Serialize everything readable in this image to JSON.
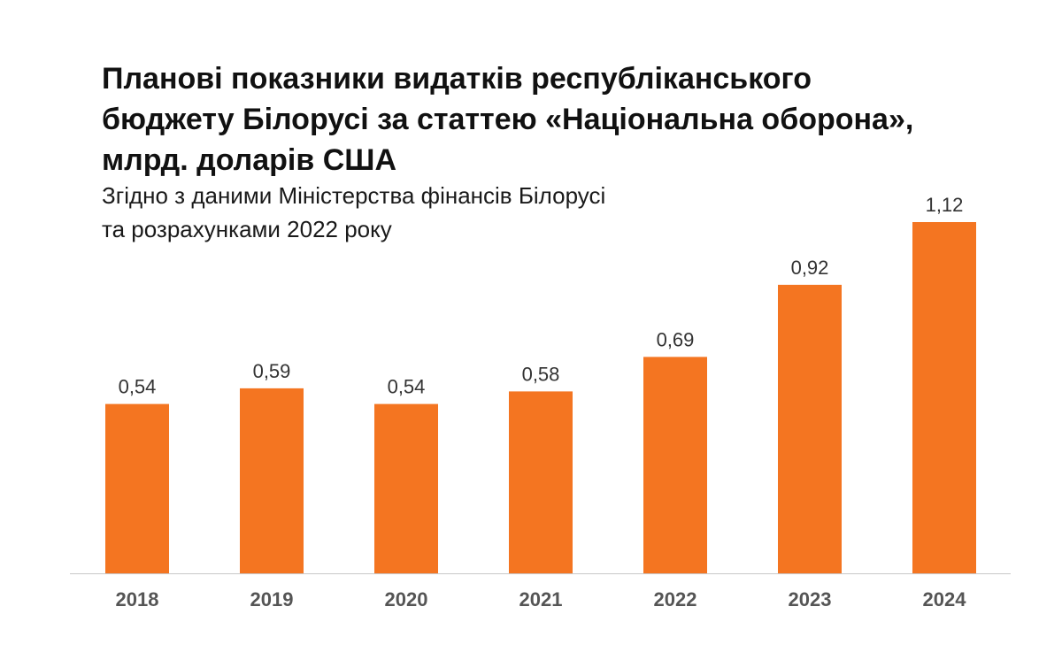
{
  "title": "Планові показники видатків республіканського\nбюджету Білорусі за статтею «Національна оборона»,\nмлрд. доларів США",
  "subtitle": "Згідно з даними Міністерства фінансів Білорусі\nта розрахунками 2022 року",
  "colors": {
    "bar": "#F47521",
    "axis": "#c8c8c8"
  },
  "chart_data": {
    "type": "bar",
    "title": "Планові показники видатків республіканського бюджету Білорусі за статтею «Національна оборона», млрд. доларів США",
    "subtitle": "Згідно з даними Міністерства фінансів Білорусі та розрахунками 2022 року",
    "xlabel": "",
    "ylabel": "",
    "grid": false,
    "categories": [
      "2018",
      "2019",
      "2020",
      "2021",
      "2022",
      "2023",
      "2024"
    ],
    "values": [
      0.54,
      0.59,
      0.54,
      0.58,
      0.69,
      0.92,
      1.12
    ],
    "value_labels": [
      "0,54",
      "0,59",
      "0,54",
      "0,58",
      "0,69",
      "0,92",
      "1,12"
    ],
    "ylim": [
      0,
      1.12
    ]
  }
}
